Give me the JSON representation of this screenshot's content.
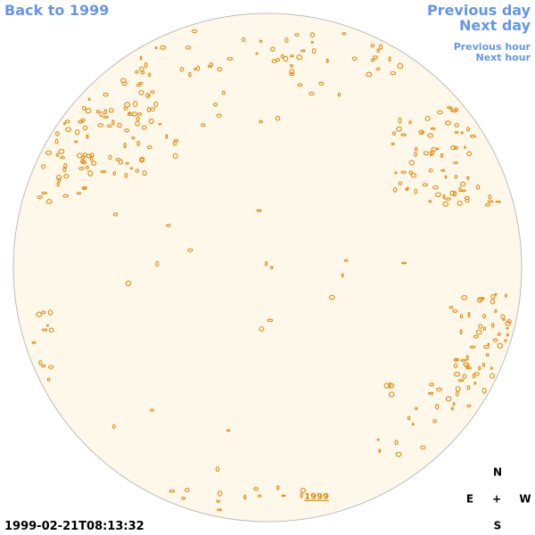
{
  "nav": {
    "back": "Back to 1999",
    "previous_day": "Previous day",
    "next_day": "Next day",
    "previous_hour": "Previous hour",
    "next_hour": "Next hour"
  },
  "disk_label": "1999",
  "timestamp": "1999-02-21T08:13:32",
  "compass": {
    "north": "N",
    "east": "E",
    "center": "+",
    "west": "W",
    "south": "S"
  }
}
